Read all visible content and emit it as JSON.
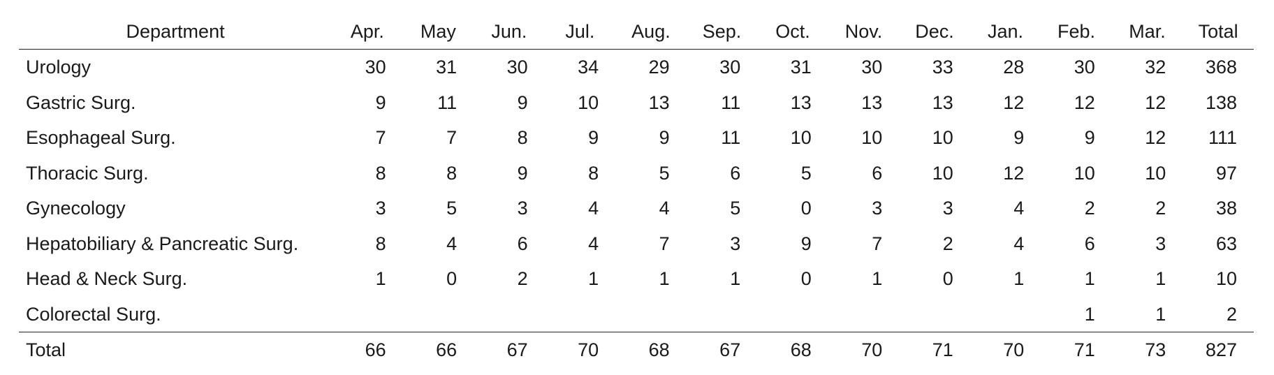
{
  "table": {
    "header": {
      "department": "Department",
      "months": [
        "Apr.",
        "May",
        "Jun.",
        "Jul.",
        "Aug.",
        "Sep.",
        "Oct.",
        "Nov.",
        "Dec.",
        "Jan.",
        "Feb.",
        "Mar."
      ],
      "total": "Total"
    },
    "rows": [
      {
        "department": "Urology",
        "values": [
          "30",
          "31",
          "30",
          "34",
          "29",
          "30",
          "31",
          "30",
          "33",
          "28",
          "30",
          "32"
        ],
        "total": "368"
      },
      {
        "department": "Gastric Surg.",
        "values": [
          "9",
          "11",
          "9",
          "10",
          "13",
          "11",
          "13",
          "13",
          "13",
          "12",
          "12",
          "12"
        ],
        "total": "138"
      },
      {
        "department": "Esophageal Surg.",
        "values": [
          "7",
          "7",
          "8",
          "9",
          "9",
          "11",
          "10",
          "10",
          "10",
          "9",
          "9",
          "12"
        ],
        "total": "111"
      },
      {
        "department": "Thoracic Surg.",
        "values": [
          "8",
          "8",
          "9",
          "8",
          "5",
          "6",
          "5",
          "6",
          "10",
          "12",
          "10",
          "10"
        ],
        "total": "97"
      },
      {
        "department": "Gynecology",
        "values": [
          "3",
          "5",
          "3",
          "4",
          "4",
          "5",
          "0",
          "3",
          "3",
          "4",
          "2",
          "2"
        ],
        "total": "38"
      },
      {
        "department": "Hepatobiliary & Pancreatic Surg.",
        "values": [
          "8",
          "4",
          "6",
          "4",
          "7",
          "3",
          "9",
          "7",
          "2",
          "4",
          "6",
          "3"
        ],
        "total": "63"
      },
      {
        "department": "Head & Neck Surg.",
        "values": [
          "1",
          "0",
          "2",
          "1",
          "1",
          "1",
          "0",
          "1",
          "0",
          "1",
          "1",
          "1"
        ],
        "total": "10"
      },
      {
        "department": "Colorectal Surg.",
        "values": [
          "",
          "",
          "",
          "",
          "",
          "",
          "",
          "",
          "",
          "",
          "1",
          "1"
        ],
        "total": "2"
      }
    ],
    "total_row": {
      "label": "Total",
      "values": [
        "66",
        "66",
        "67",
        "70",
        "68",
        "67",
        "68",
        "70",
        "71",
        "70",
        "71",
        "73"
      ],
      "total": "827"
    }
  }
}
